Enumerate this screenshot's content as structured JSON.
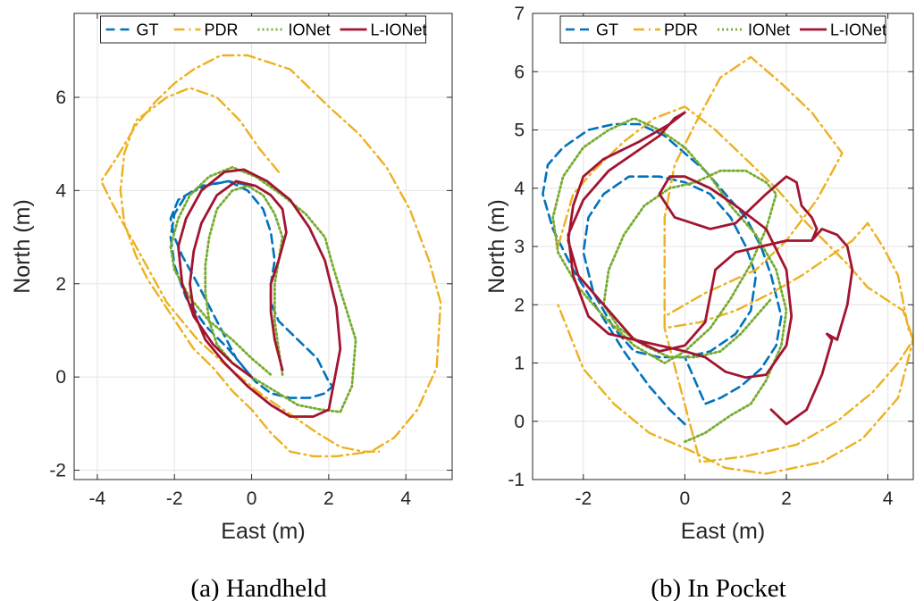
{
  "colors": {
    "gt": "#0072BD",
    "pdr": "#EDB120",
    "ionet": "#77AC30",
    "lionet": "#A2142F"
  },
  "chart_data": [
    {
      "type": "line",
      "caption": "(a)  Handheld",
      "xlabel": "East (m)",
      "ylabel": "North (m)",
      "xlim": [
        -4.6,
        5.2
      ],
      "ylim": [
        -2.2,
        7.8
      ],
      "xticks": [
        -4,
        -2,
        0,
        2,
        4
      ],
      "yticks": [
        -2,
        0,
        2,
        4,
        6
      ],
      "grid": true,
      "legend": {
        "placement": "top",
        "orientation": "horizontal",
        "entries": [
          "GT",
          "PDR",
          "IONet",
          "L-IONet"
        ]
      },
      "series": [
        {
          "name": "GT",
          "style": "dashed",
          "x": [
            0.0,
            -0.6,
            -1.2,
            -1.7,
            -2.0,
            -2.1,
            -2.0,
            -1.7,
            -1.2,
            -0.6,
            -0.1,
            0.3,
            0.5,
            0.6,
            0.5,
            0.5,
            0.7,
            1.2,
            1.7,
            2.0,
            2.1,
            1.9,
            1.5,
            1.0,
            0.5,
            0.1,
            -0.4,
            -0.9,
            -1.4,
            -1.8,
            -2.0,
            -2.1,
            -1.9,
            -1.3,
            -0.6,
            0.0
          ],
          "y": [
            0.0,
            0.6,
            1.1,
            1.7,
            2.4,
            3.0,
            3.5,
            3.9,
            4.1,
            4.2,
            4.0,
            3.6,
            3.1,
            2.5,
            2.0,
            1.6,
            1.2,
            0.8,
            0.4,
            -0.1,
            -0.2,
            -0.35,
            -0.45,
            -0.45,
            -0.35,
            -0.1,
            0.4,
            1.2,
            2.0,
            2.6,
            3.0,
            3.4,
            3.8,
            4.1,
            4.2,
            4.1
          ]
        },
        {
          "name": "PDR",
          "style": "dashdot",
          "x": [
            0.7,
            0.2,
            -0.3,
            -0.9,
            -1.6,
            -2.2,
            -3.0,
            -3.3,
            -3.4,
            -3.3,
            -3.0,
            -2.7,
            -2.3,
            -1.9,
            -1.5,
            -1.0,
            -0.5,
            0.0,
            0.5,
            1.0,
            1.6,
            2.2,
            3.1,
            3.7,
            4.3,
            4.8,
            4.9,
            4.6,
            4.1,
            3.5,
            2.8,
            2.0,
            1.0,
            -0.1,
            -0.8,
            -1.5,
            -2.0,
            -2.5,
            -3.0,
            -3.5,
            -3.9,
            -3.6,
            -3.0,
            -2.2,
            -1.4,
            -0.6,
            0.3,
            1.0,
            1.7,
            2.3,
            2.9,
            3.3
          ],
          "y": [
            4.4,
            4.9,
            5.5,
            6.0,
            6.2,
            6.0,
            5.5,
            4.8,
            4.0,
            3.3,
            2.6,
            2.1,
            1.6,
            1.1,
            0.6,
            0.2,
            -0.3,
            -0.7,
            -1.2,
            -1.6,
            -1.7,
            -1.7,
            -1.6,
            -1.3,
            -0.7,
            0.2,
            1.6,
            2.5,
            3.6,
            4.5,
            5.2,
            5.8,
            6.6,
            6.9,
            6.9,
            6.6,
            6.3,
            5.9,
            5.4,
            4.7,
            4.2,
            3.7,
            2.8,
            1.6,
            0.8,
            0.2,
            -0.4,
            -0.8,
            -1.2,
            -1.5,
            -1.6,
            -1.6
          ]
        },
        {
          "name": "IONet",
          "style": "dotted",
          "x": [
            0.8,
            0.7,
            0.6,
            0.6,
            0.7,
            0.8,
            0.6,
            0.3,
            -0.1,
            -0.5,
            -0.9,
            -1.1,
            -1.2,
            -1.2,
            -1.1,
            -0.9,
            -0.5,
            0.0,
            0.6,
            1.2,
            1.8,
            2.3,
            2.6,
            2.7,
            2.4,
            2.1,
            1.9,
            1.4,
            0.8,
            0.1,
            -0.5,
            -1.1,
            -1.6,
            -1.9,
            -2.1,
            -2.0,
            -1.6,
            -1.1,
            -0.5,
            0.0,
            0.5
          ],
          "y": [
            0.05,
            0.6,
            1.2,
            2.0,
            2.5,
            3.0,
            3.5,
            3.9,
            4.1,
            4.0,
            3.6,
            3.0,
            2.4,
            1.8,
            1.2,
            0.7,
            0.3,
            0.0,
            -0.3,
            -0.6,
            -0.7,
            -0.75,
            -0.2,
            0.8,
            1.6,
            2.4,
            3.0,
            3.5,
            3.9,
            4.3,
            4.5,
            4.3,
            3.9,
            3.4,
            2.8,
            2.3,
            1.7,
            1.2,
            0.8,
            0.4,
            0.05
          ]
        },
        {
          "name": "L-IONet",
          "style": "solid",
          "x": [
            0.8,
            0.6,
            0.5,
            0.5,
            0.7,
            0.9,
            0.8,
            0.5,
            0.1,
            -0.4,
            -0.9,
            -1.3,
            -1.5,
            -1.6,
            -1.5,
            -1.2,
            -0.7,
            -0.1,
            0.5,
            1.0,
            1.6,
            2.0,
            2.3,
            2.2,
            1.9,
            1.5,
            1.0,
            0.4,
            -0.2,
            -0.7,
            -1.3,
            -1.7,
            -1.9,
            -1.8,
            -1.5,
            -1.0,
            -0.5,
            0.0
          ],
          "y": [
            0.15,
            0.8,
            1.4,
            2.0,
            2.5,
            3.1,
            3.6,
            3.9,
            4.1,
            4.2,
            3.9,
            3.3,
            2.7,
            2.0,
            1.4,
            0.8,
            0.3,
            -0.2,
            -0.6,
            -0.85,
            -0.85,
            -0.7,
            0.6,
            1.5,
            2.5,
            3.2,
            3.8,
            4.2,
            4.45,
            4.4,
            4.0,
            3.4,
            2.8,
            2.0,
            1.3,
            0.7,
            0.3,
            0.0
          ]
        }
      ]
    },
    {
      "type": "line",
      "caption": "(b)  In Pocket",
      "xlabel": "East (m)",
      "ylabel": "North (m)",
      "xlim": [
        -3.0,
        4.5
      ],
      "ylim": [
        -1.0,
        7.0
      ],
      "xticks": [
        -2,
        0,
        2,
        4
      ],
      "yticks": [
        -1,
        0,
        1,
        2,
        3,
        4,
        5,
        6,
        7
      ],
      "grid": true,
      "legend": {
        "placement": "top",
        "orientation": "horizontal",
        "entries": [
          "GT",
          "PDR",
          "IONet",
          "L-IONet"
        ]
      },
      "series": [
        {
          "name": "GT",
          "style": "dashed",
          "x": [
            0.0,
            -0.3,
            -0.7,
            -1.2,
            -1.7,
            -2.2,
            -2.6,
            -2.8,
            -2.7,
            -2.4,
            -1.9,
            -1.4,
            -0.9,
            -0.4,
            0.0,
            0.4,
            0.8,
            1.2,
            1.5,
            1.7,
            1.9,
            1.8,
            1.5,
            1.1,
            0.7,
            0.4,
            0.0,
            -0.5,
            -1.0,
            -1.4,
            -1.8,
            -2.0,
            -1.9,
            -1.6,
            -1.1,
            -0.5,
            0.0,
            0.5,
            0.9,
            1.2,
            1.4,
            1.3,
            1.0,
            0.5,
            0.0,
            -0.5
          ],
          "y": [
            -0.05,
            0.2,
            0.6,
            1.2,
            1.9,
            2.6,
            3.3,
            3.9,
            4.4,
            4.7,
            5.0,
            5.1,
            5.1,
            4.9,
            4.6,
            4.3,
            3.9,
            3.5,
            3.0,
            2.5,
            1.8,
            1.3,
            0.9,
            0.6,
            0.4,
            0.3,
            1.1,
            1.1,
            1.2,
            1.6,
            2.2,
            2.9,
            3.5,
            3.9,
            4.2,
            4.2,
            4.1,
            3.9,
            3.5,
            3.0,
            2.5,
            1.9,
            1.5,
            1.2,
            1.1,
            1.1
          ]
        },
        {
          "name": "PDR",
          "style": "dashdot",
          "x": [
            -2.5,
            -2.2,
            -1.8,
            -1.2,
            -0.6,
            0.0,
            0.6,
            1.2,
            1.8,
            2.4,
            3.2,
            3.6,
            4.3,
            4.5,
            4.2,
            3.7,
            3.0,
            2.2,
            1.2,
            0.3,
            -0.4,
            -0.4,
            -0.2,
            0.2,
            0.7,
            1.3,
            1.9,
            2.5,
            3.1,
            2.6,
            2.0,
            1.4,
            0.9,
            0.4,
            0.0,
            -0.4,
            -0.4,
            0.3,
            1.0,
            1.7,
            2.3,
            2.8,
            3.3,
            3.6,
            3.9,
            4.2,
            4.4,
            4.5,
            4.2,
            3.5,
            2.7,
            1.6,
            0.8,
            0.1,
            -0.7,
            -1.4,
            -2.0,
            -2.5
          ],
          "y": [
            3.0,
            3.9,
            4.3,
            4.8,
            5.2,
            5.4,
            5.0,
            4.5,
            4.0,
            3.4,
            2.7,
            2.3,
            1.9,
            1.4,
            1.0,
            0.5,
            0.0,
            -0.4,
            -0.6,
            -0.7,
            1.6,
            3.5,
            4.4,
            5.1,
            5.9,
            6.25,
            5.8,
            5.3,
            4.6,
            3.8,
            3.1,
            2.6,
            2.4,
            2.2,
            2.0,
            1.8,
            1.6,
            1.7,
            1.9,
            2.2,
            2.5,
            2.8,
            3.1,
            3.4,
            3.0,
            2.5,
            1.6,
            1.4,
            0.4,
            -0.3,
            -0.7,
            -0.9,
            -0.8,
            -0.5,
            -0.2,
            0.3,
            0.9,
            2.0
          ]
        },
        {
          "name": "IONet",
          "style": "dotted",
          "x": [
            0.0,
            0.4,
            0.9,
            1.3,
            1.6,
            1.9,
            2.0,
            1.8,
            1.4,
            0.9,
            0.5,
            0.0,
            -0.5,
            -1.0,
            -1.5,
            -2.0,
            -2.4,
            -2.6,
            -2.5,
            -2.1,
            -1.6,
            -1.0,
            -0.4,
            0.0,
            0.5,
            0.9,
            1.3,
            1.6,
            1.8,
            1.6,
            1.2,
            0.7,
            0.2,
            -0.3,
            -0.8,
            -1.2,
            -1.5,
            -1.6,
            -1.3,
            -0.8,
            -0.3,
            0.2,
            0.7,
            1.1,
            1.4,
            1.7
          ],
          "y": [
            -0.35,
            -0.2,
            0.1,
            0.3,
            0.7,
            1.3,
            1.9,
            2.6,
            3.2,
            3.7,
            4.2,
            4.7,
            5.0,
            5.2,
            5.0,
            4.7,
            4.2,
            3.5,
            2.9,
            2.3,
            1.8,
            1.3,
            1.0,
            1.2,
            1.6,
            2.1,
            2.7,
            3.3,
            3.9,
            4.1,
            4.3,
            4.3,
            4.1,
            4.0,
            3.7,
            3.2,
            2.6,
            2.0,
            1.6,
            1.3,
            1.1,
            1.1,
            1.2,
            1.5,
            1.8,
            2.1
          ]
        },
        {
          "name": "L-IONet",
          "style": "solid",
          "x": [
            1.7,
            2.0,
            2.4,
            2.7,
            2.9,
            2.8,
            3.0,
            3.2,
            3.3,
            3.2,
            3.0,
            2.7,
            2.5,
            2.0,
            1.5,
            1.0,
            0.6,
            0.4,
            0.0,
            -0.5,
            -1.0,
            -1.5,
            -1.9,
            -2.2,
            -2.3,
            -2.0,
            -1.5,
            -1.0,
            -0.5,
            -0.2,
            0.0,
            -0.3,
            -0.9,
            -1.6,
            -2.0,
            -2.2,
            -2.3,
            -2.1,
            -1.5,
            -1.0,
            -0.5,
            0.0,
            0.4,
            0.8,
            1.2,
            1.6,
            2.0,
            2.1,
            2.0,
            1.6,
            1.0,
            0.5,
            0.0,
            -0.3,
            -0.5,
            -0.2,
            0.5,
            1.0,
            1.6,
            2.0,
            2.2,
            2.3,
            2.5,
            2.6,
            2.5
          ],
          "y": [
            0.2,
            -0.05,
            0.2,
            0.8,
            1.4,
            1.5,
            1.4,
            2.0,
            2.6,
            3.0,
            3.2,
            3.3,
            3.1,
            3.1,
            3.0,
            2.9,
            2.6,
            1.7,
            1.3,
            1.2,
            1.4,
            1.5,
            1.8,
            2.5,
            3.2,
            3.8,
            4.3,
            4.6,
            4.9,
            5.2,
            5.3,
            5.1,
            4.8,
            4.5,
            4.2,
            3.7,
            3.1,
            2.5,
            1.9,
            1.4,
            1.3,
            1.2,
            1.1,
            0.85,
            0.75,
            0.8,
            1.3,
            1.8,
            2.6,
            3.3,
            3.7,
            4.0,
            4.2,
            4.2,
            3.9,
            3.5,
            3.3,
            3.4,
            3.9,
            4.2,
            4.1,
            3.7,
            3.5,
            3.3,
            3.1
          ]
        }
      ]
    }
  ]
}
